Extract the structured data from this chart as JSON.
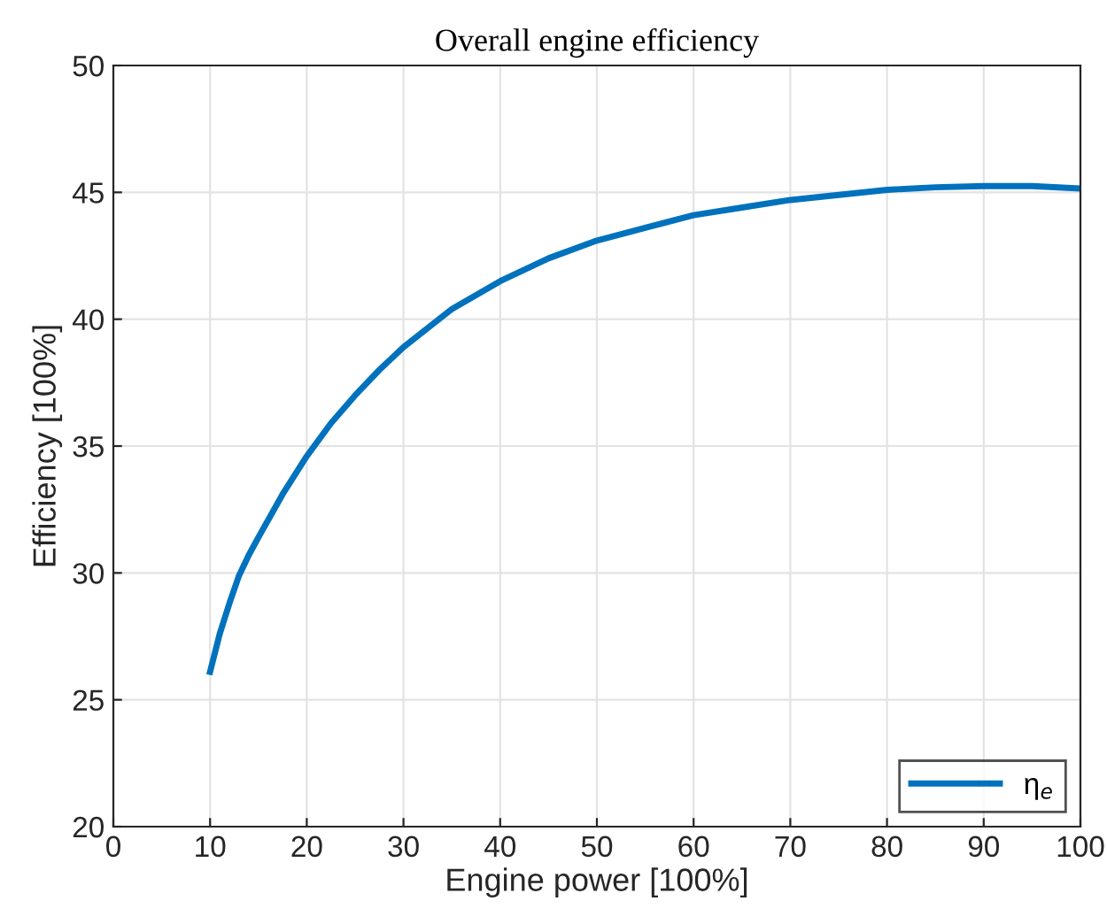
{
  "chart_data": {
    "type": "line",
    "title": "Overall engine efficiency",
    "xlabel": "Engine power [100%]",
    "ylabel": "Efficiency [100%]",
    "x": [
      10,
      11,
      12,
      13,
      14,
      15,
      17.5,
      20,
      22.5,
      25,
      27.5,
      30,
      35,
      40,
      45,
      50,
      55,
      60,
      65,
      70,
      75,
      80,
      85,
      90,
      95,
      100
    ],
    "series": [
      {
        "name": "η$_{e}$",
        "color": "#0072bd",
        "values": [
          26.1,
          27.6,
          28.8,
          29.9,
          30.7,
          31.4,
          33.1,
          34.6,
          35.9,
          37.0,
          38.0,
          38.9,
          40.4,
          41.5,
          42.4,
          43.1,
          43.6,
          44.1,
          44.4,
          44.7,
          44.9,
          45.1,
          45.2,
          45.25,
          45.25,
          45.15
        ]
      }
    ],
    "xlim": [
      0,
      100
    ],
    "xticks": [
      0,
      10,
      20,
      30,
      40,
      50,
      60,
      70,
      80,
      90,
      100
    ],
    "ylim": [
      20,
      50
    ],
    "yticks": [
      20,
      25,
      30,
      35,
      40,
      45,
      50
    ],
    "grid": true,
    "legend": "bottom right",
    "marker": "none",
    "line_style": "solid"
  }
}
